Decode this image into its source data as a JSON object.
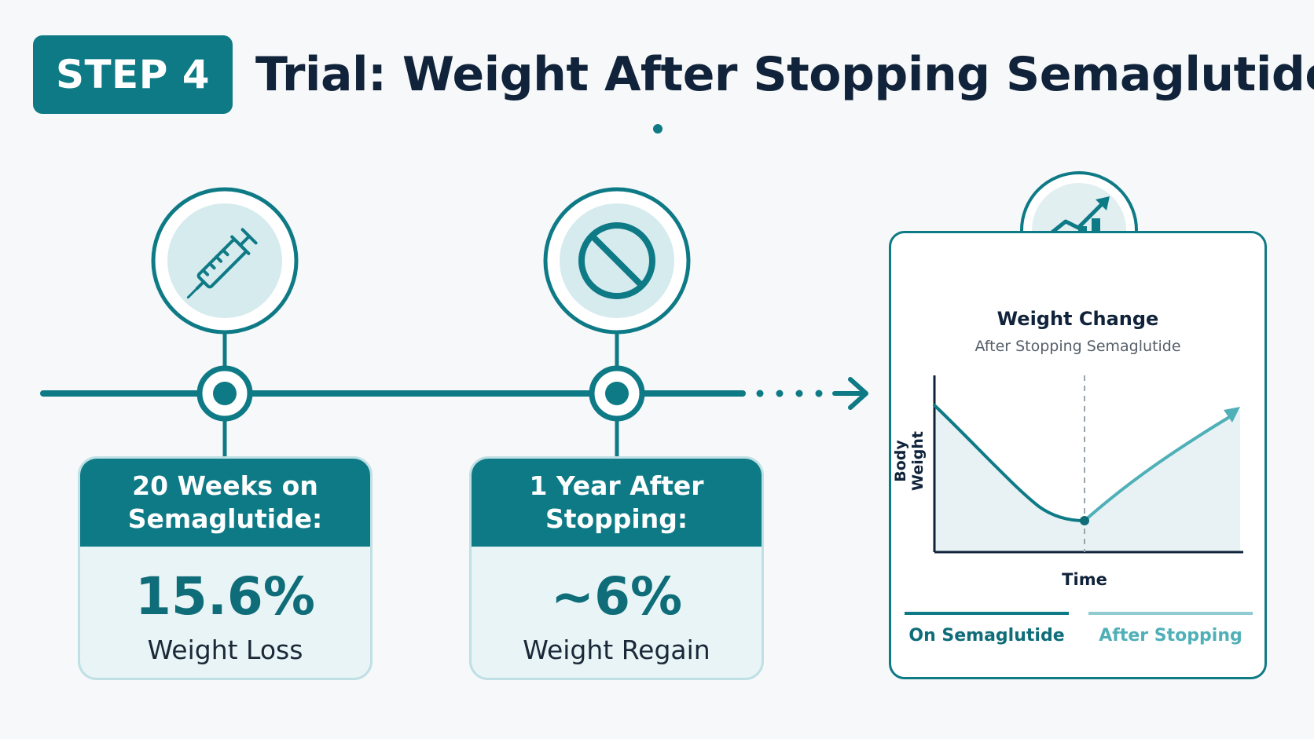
{
  "header": {
    "step_label": "STEP 4",
    "title": "Trial: Weight After Stopping Semaglutide"
  },
  "timeline": {
    "milestones": [
      {
        "icon": "syringe-icon",
        "heading": "20 Weeks on Semaglutide:",
        "value": "15.6%",
        "label": "Weight Loss"
      },
      {
        "icon": "prohibited-icon",
        "heading": "1 Year After Stopping:",
        "value": "~6%",
        "label": "Weight Regain"
      }
    ]
  },
  "chart_panel": {
    "icon": "bar-chart-trend-icon",
    "title": "Weight Change",
    "subtitle": "After Stopping Semaglutide"
  },
  "chart_data": {
    "type": "line",
    "title": "Weight Change",
    "subtitle": "After Stopping Semaglutide",
    "xlabel": "Time",
    "ylabel": "Body Weight",
    "grid": false,
    "series": [
      {
        "name": "On Semaglutide",
        "color": "#0e7a86"
      },
      {
        "name": "After Stopping",
        "color": "#4fb0b8"
      }
    ]
  },
  "legend": {
    "on_label": "On Semaglutide",
    "after_label": "After Stopping"
  },
  "colors": {
    "primary": "#0e7a86",
    "light": "#e3f0f2",
    "accent_light": "#4fb0b8"
  }
}
